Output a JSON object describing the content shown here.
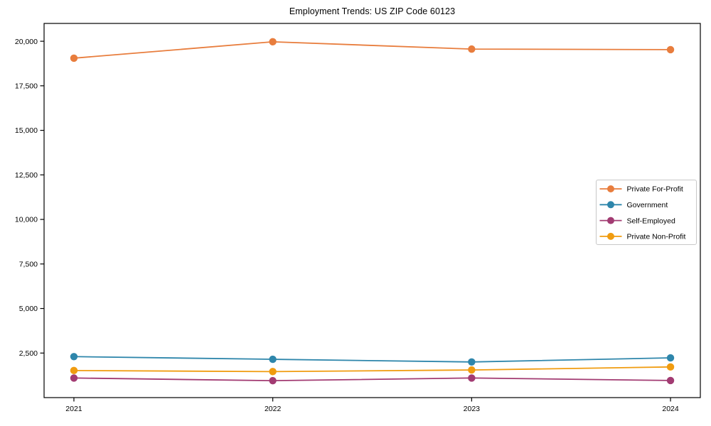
{
  "chart_data": {
    "type": "line",
    "title": "Employment Trends: US ZIP Code 60123",
    "x": [
      "2021",
      "2022",
      "2023",
      "2024"
    ],
    "series": [
      {
        "name": "Private For-Profit",
        "color": "#E87D3D",
        "values": [
          19050,
          19970,
          19560,
          19530
        ]
      },
      {
        "name": "Government",
        "color": "#2E86AB",
        "values": [
          2300,
          2150,
          2000,
          2230
        ]
      },
      {
        "name": "Self-Employed",
        "color": "#A23B72",
        "values": [
          1100,
          950,
          1100,
          960
        ]
      },
      {
        "name": "Private Non-Profit",
        "color": "#F09C10",
        "values": [
          1520,
          1460,
          1550,
          1720
        ]
      }
    ],
    "yticks": [
      2500,
      5000,
      7500,
      10000,
      12500,
      15000,
      17500,
      20000
    ],
    "ylim": [
      0,
      21000
    ],
    "xlabel": "",
    "ylabel": "",
    "grid": false,
    "legend_position": "center-right",
    "background": "#ffffff",
    "axis_color": "#000000",
    "legend_border_color": "#c8c8c8"
  }
}
